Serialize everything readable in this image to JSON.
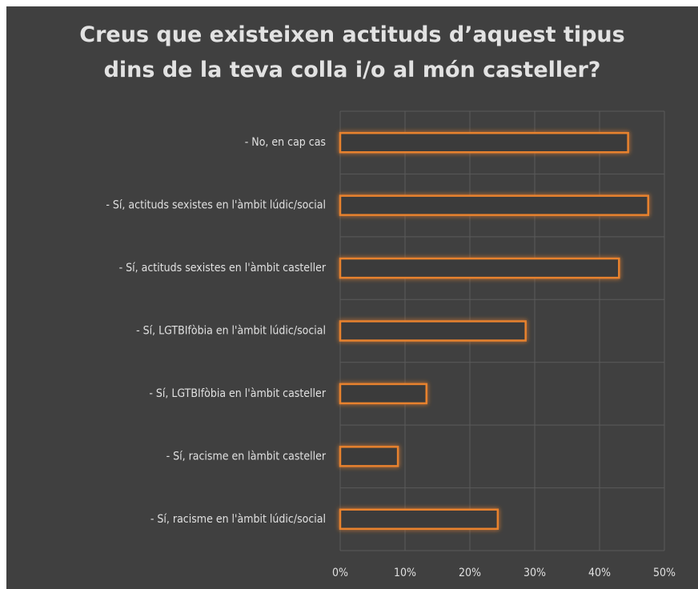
{
  "chart_data": {
    "type": "bar",
    "orientation": "horizontal",
    "title": "Creus que existeixen actituds d’aquest tipus dins de la teva colla i/o al món casteller?",
    "categories": [
      "- No, en cap cas",
      "- Sí, actituds sexistes en l'àmbit lúdic/social",
      "- Sí, actituds sexistes en l'àmbit casteller",
      "- Sí, LGTBIfòbia en l'àmbit lúdic/social",
      "- Sí, LGTBIfòbia en l'àmbit casteller",
      "- Sí, racisme en làmbit casteller",
      "- Sí, racisme en l'àmbit lúdic/social"
    ],
    "values": [
      44.4,
      47.5,
      43,
      28.6,
      13.3,
      8.9,
      24.3
    ],
    "color": "#e8822e",
    "xlim": [
      0,
      50
    ],
    "xticks": [
      {
        "value": 0,
        "label": "0%"
      },
      {
        "value": 10,
        "label": "10%"
      },
      {
        "value": 20,
        "label": "20%"
      },
      {
        "value": 30,
        "label": "30%"
      },
      {
        "value": 40,
        "label": "40%"
      },
      {
        "value": 50,
        "label": "50%"
      }
    ],
    "grid": true
  }
}
